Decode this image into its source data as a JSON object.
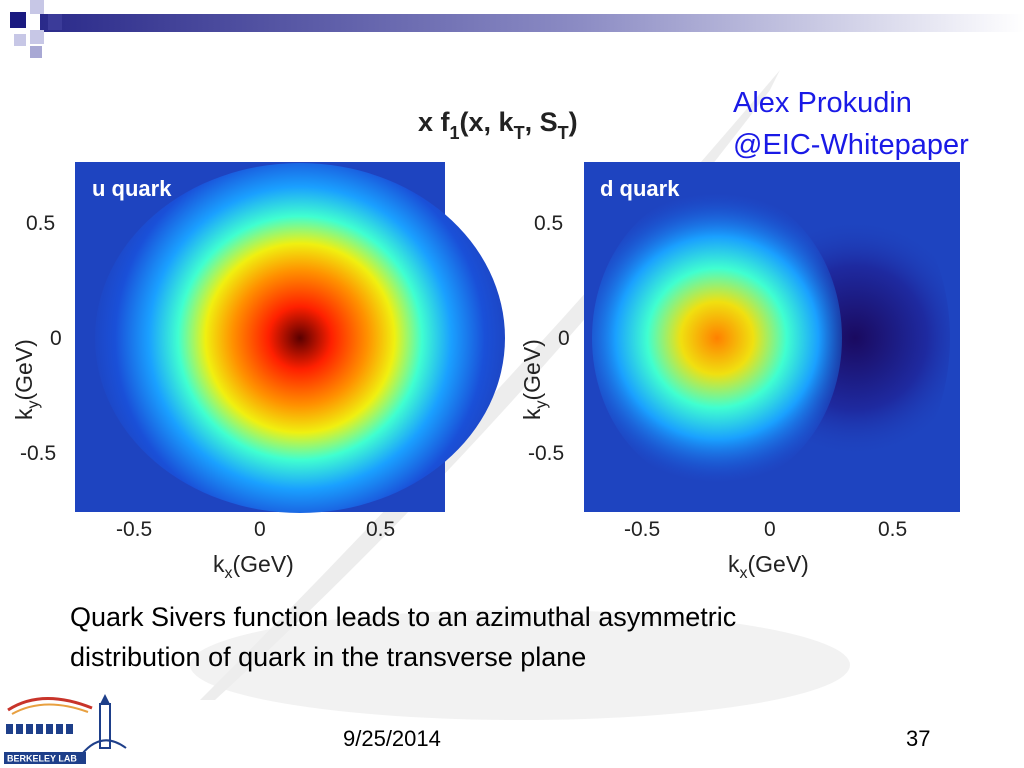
{
  "author": {
    "line1": "Alex Prokudin",
    "line2": "@EIC-Whitepaper"
  },
  "figure": {
    "title": "x f",
    "title_sub": "1",
    "title_rest": "(x, k",
    "title_sub2": "T",
    "title_rest2": ", S",
    "title_sub3": "T",
    "title_end": ")"
  },
  "chart_data": [
    {
      "type": "heatmap",
      "title": "u quark",
      "xlabel": "kx(GeV)",
      "ylabel": "ky(GeV)",
      "xlim": [
        -0.72,
        0.72
      ],
      "ylim": [
        -0.75,
        0.75
      ],
      "xticks": [
        "-0.5",
        "0",
        "0.5"
      ],
      "yticks": [
        "0.5",
        "0",
        "-0.5"
      ],
      "peak": {
        "x": 0.17,
        "y": 0.0,
        "sign": "positive"
      }
    },
    {
      "type": "heatmap",
      "title": "d quark",
      "xlabel": "kx(GeV)",
      "ylabel": "ky(GeV)",
      "xlim": [
        -0.72,
        0.72
      ],
      "ylim": [
        -0.75,
        0.75
      ],
      "xticks": [
        "-0.5",
        "0",
        "0.5"
      ],
      "yticks": [
        "0.5",
        "0",
        "-0.5"
      ],
      "peak": {
        "x": -0.2,
        "y": 0.0,
        "sign": "positive"
      },
      "trough": {
        "x": 0.35,
        "y": 0.0
      }
    }
  ],
  "caption": {
    "line1": "Quark Sivers function leads to an azimuthal asymmetric",
    "line2": "distribution of quark in the transverse plane"
  },
  "footer": {
    "date": "9/25/2014",
    "page": "37"
  },
  "logo": {
    "text": "BERKELEY LAB"
  },
  "colors": {
    "author": "#1a1ae6",
    "topbar": "#2a2a8a"
  }
}
